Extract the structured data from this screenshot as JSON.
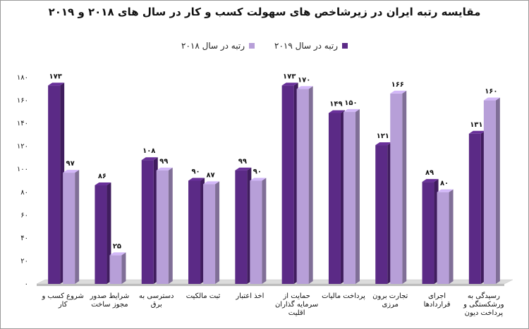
{
  "title": "مقایسه رتبه ایران در زیرشاخص های سهولت کسب و کار در سال های ۲۰۱۸ و ۲۰۱۹",
  "legend": {
    "series_2019": "رتبه در سال ۲۰۱۹",
    "series_2018": "رتبه در سال ۲۰۱۸"
  },
  "colors": {
    "series_2019": "#5b2a86",
    "series_2018": "#b79fd8",
    "floor": "#dcdcdc"
  },
  "chart_data": {
    "type": "bar",
    "title": "مقایسه رتبه ایران در زیرشاخص های سهولت کسب و کار در سال های ۲۰۱۸ و ۲۰۱۹",
    "categories": [
      [
        "شروع کسب و",
        "کار"
      ],
      [
        "شرایط صدور",
        "مجوز ساخت"
      ],
      [
        "دسترسی به",
        "برق"
      ],
      [
        "ثبت مالکیت"
      ],
      [
        "اخذ اعتبار"
      ],
      [
        "حمایت از",
        "سرمایه گذاران",
        "اقلیت"
      ],
      [
        "پرداخت مالیات"
      ],
      [
        "تجارت برون",
        "مرزی"
      ],
      [
        "اجرای",
        "قراردادها"
      ],
      [
        "رسیدگی به",
        "ورشکستگی و",
        "پرداخت دیون"
      ]
    ],
    "series": [
      {
        "name": "رتبه در سال ۲۰۱۹",
        "values": [
          173,
          86,
          108,
          90,
          99,
          173,
          149,
          121,
          89,
          131
        ],
        "labels": [
          "۱۷۳",
          "۸۶",
          "۱۰۸",
          "۹۰",
          "۹۹",
          "۱۷۳",
          "۱۴۹",
          "۱۲۱",
          "۸۹",
          "۱۳۱"
        ]
      },
      {
        "name": "رتبه در سال ۲۰۱۸",
        "values": [
          97,
          25,
          99,
          87,
          90,
          170,
          150,
          166,
          80,
          160
        ],
        "labels": [
          "۹۷",
          "۲۵",
          "۹۹",
          "۸۷",
          "۹۰",
          "۱۷۰",
          "۱۵۰",
          "۱۶۶",
          "۸۰",
          "۱۶۰"
        ]
      }
    ],
    "ylim": [
      0,
      180
    ],
    "yticks": [
      0,
      20,
      40,
      60,
      80,
      100,
      120,
      140,
      160,
      180
    ],
    "ytick_labels": [
      "۰",
      "۲۰",
      "۴۰",
      "۶۰",
      "۸۰",
      "۱۰۰",
      "۱۲۰",
      "۱۴۰",
      "۱۶۰",
      "۱۸۰"
    ],
    "grid": false,
    "legend_position": "top"
  }
}
